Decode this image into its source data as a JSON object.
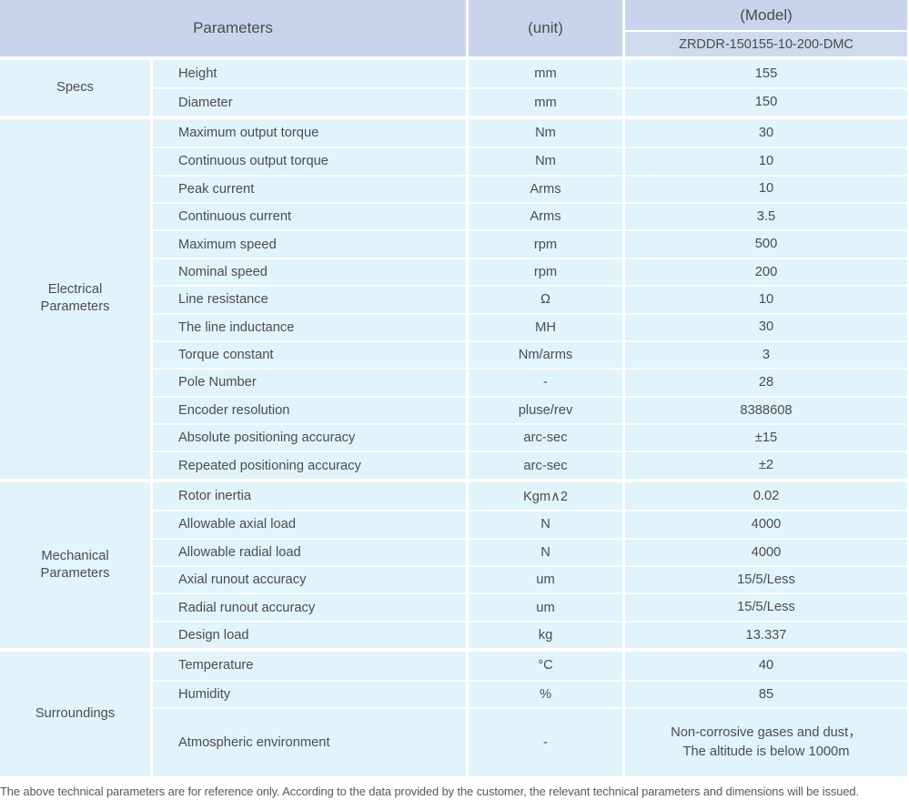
{
  "header": {
    "parameters_label": "Parameters",
    "unit_label": "(unit)",
    "model_label": "(Model)",
    "model_value": "ZRDDR-150155-10-200-DMC"
  },
  "sections": [
    {
      "category": "Specs",
      "rows": [
        {
          "param": "Height",
          "unit": "mm",
          "value": "155"
        },
        {
          "param": "Diameter",
          "unit": "mm",
          "value": "150"
        }
      ]
    },
    {
      "category": "Electrical Parameters",
      "rows": [
        {
          "param": "Maximum output torque",
          "unit": "Nm",
          "value": "30"
        },
        {
          "param": "Continuous output torque",
          "unit": "Nm",
          "value": "10"
        },
        {
          "param": "Peak current",
          "unit": "Arms",
          "value": "10"
        },
        {
          "param": "Continuous current",
          "unit": "Arms",
          "value": "3.5"
        },
        {
          "param": "Maximum speed",
          "unit": "rpm",
          "value": "500"
        },
        {
          "param": "Nominal speed",
          "unit": "rpm",
          "value": "200"
        },
        {
          "param": "Line resistance",
          "unit": "Ω",
          "value": "10"
        },
        {
          "param": "The line inductance",
          "unit": "MH",
          "value": "30"
        },
        {
          "param": "Torque constant",
          "unit": "Nm/arms",
          "value": "3"
        },
        {
          "param": "Pole Number",
          "unit": "-",
          "value": "28"
        },
        {
          "param": "Encoder resolution",
          "unit": "pluse/rev",
          "value": "8388608"
        },
        {
          "param": "Absolute positioning accuracy",
          "unit": "arc-sec",
          "value": "±15"
        },
        {
          "param": "Repeated positioning accuracy",
          "unit": "arc-sec",
          "value": "±2"
        }
      ]
    },
    {
      "category": "Mechanical Parameters",
      "rows": [
        {
          "param": "Rotor inertia",
          "unit": "Kgm∧2",
          "value": "0.02"
        },
        {
          "param": "Allowable axial load",
          "unit": "N",
          "value": "4000"
        },
        {
          "param": "Allowable radial load",
          "unit": "N",
          "value": "4000"
        },
        {
          "param": "Axial runout accuracy",
          "unit": "um",
          "value": "15/5/Less"
        },
        {
          "param": "Radial runout accuracy",
          "unit": "um",
          "value": "15/5/Less"
        },
        {
          "param": "Design load",
          "unit": "kg",
          "value": "13.337"
        }
      ]
    },
    {
      "category": "Surroundings",
      "rows": [
        {
          "param": "Temperature",
          "unit": "°C",
          "value": "40"
        },
        {
          "param": "Humidity",
          "unit": "%",
          "value": "85"
        },
        {
          "param": "Atmospheric environment",
          "unit": "-",
          "value": "Non-corrosive gases and dust，\nThe altitude is below 1000m",
          "tall": true
        }
      ]
    }
  ],
  "footer": {
    "note": "The above technical parameters are for reference only. According to the data provided by the customer, the relevant technical parameters and dimensions will be issued."
  },
  "colors": {
    "header_bg": "#c9d4ec",
    "model_row_bg": "#d0daef",
    "body_cell_bg": "#e1f3fb",
    "text": "#4c4d4f"
  }
}
